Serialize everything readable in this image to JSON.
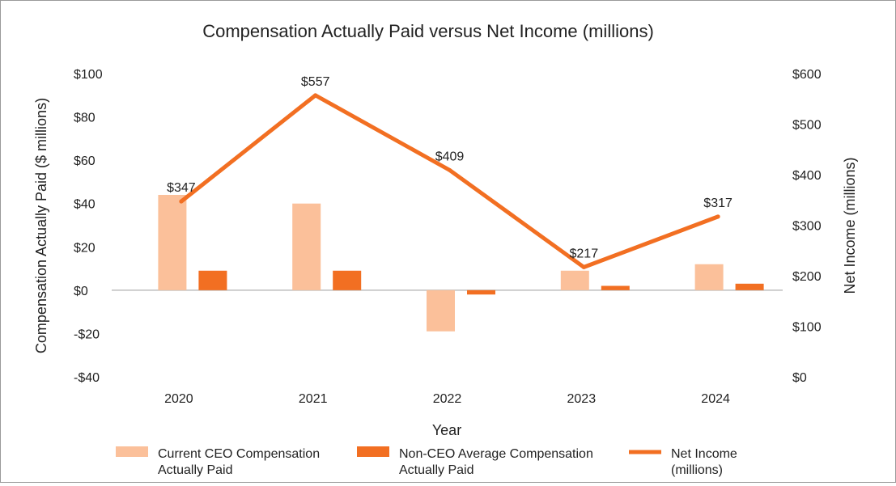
{
  "chart_data": {
    "type": "bar",
    "title": "Compensation Actually Paid versus Net Income (millions)",
    "xlabel": "Year",
    "ylabel": "Compensation Actually Paid ($ millions)",
    "y2label": "Net Income (millions)",
    "categories": [
      "2020",
      "2021",
      "2022",
      "2023",
      "2024"
    ],
    "ylim": [
      -40,
      100
    ],
    "yticks": [
      100,
      80,
      60,
      40,
      20,
      0,
      -20,
      -40
    ],
    "ytick_labels": [
      "$100",
      "$80",
      "$60",
      "$40",
      "$20",
      "$0",
      "-$20",
      "-$40"
    ],
    "y2lim": [
      0,
      600
    ],
    "y2ticks": [
      600,
      500,
      400,
      300,
      200,
      100,
      0
    ],
    "y2tick_labels": [
      "$600",
      "$500",
      "$400",
      "$300",
      "$200",
      "$100",
      "$0"
    ],
    "series": [
      {
        "name": "Current CEO Compensation Actually Paid",
        "legend_lines": [
          "Current CEO Compensation",
          "Actually Paid"
        ],
        "kind": "bar",
        "axis": "left",
        "color": "#FBC09A",
        "values": [
          44,
          40,
          -19,
          9,
          12
        ]
      },
      {
        "name": "Non-CEO Average Compensation Actually Paid",
        "legend_lines": [
          "Non-CEO Average Compensation",
          "Actually Paid"
        ],
        "kind": "bar",
        "axis": "left",
        "color": "#F26F22",
        "values": [
          9,
          9,
          -2,
          2,
          3
        ]
      },
      {
        "name": "Net Income (millions)",
        "legend_lines": [
          "Net Income",
          "(millions)"
        ],
        "kind": "line",
        "axis": "right",
        "color": "#F26F22",
        "values": [
          347,
          557,
          409,
          217,
          317
        ],
        "data_labels": [
          "$347",
          "$557",
          "$409",
          "$217",
          "$317"
        ]
      }
    ],
    "grid": false,
    "legend_position": "bottom"
  }
}
